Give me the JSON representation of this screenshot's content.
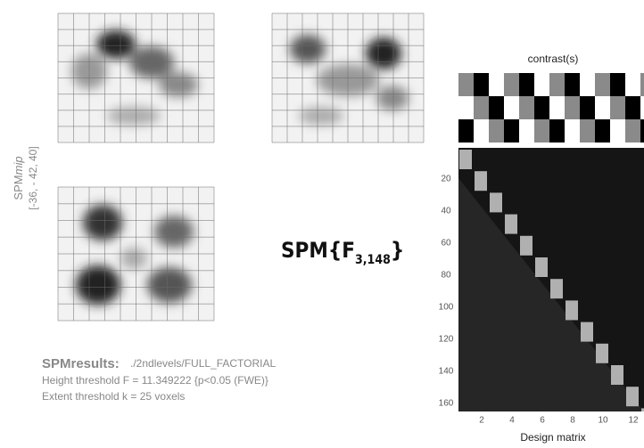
{
  "mip": {
    "label": "SPM",
    "label_italic": "mip",
    "coordinates": "[-36, - 42, 40]"
  },
  "statistic": {
    "label": "SPM{F",
    "subscript": "3,148",
    "close": "}"
  },
  "results": {
    "label": "SPMresults:",
    "path": "./2ndlevels/FULL_FACTORIAL",
    "height_threshold": "Height threshold F = 11.349222 {p<0.05 (FWE)}",
    "extent_threshold": "Extent threshold k = 25 voxels"
  },
  "design_matrix": {
    "contrast_title": "contrast(s)",
    "xlabel": "Design matrix",
    "yticks": [
      20,
      40,
      60,
      80,
      100,
      120,
      140,
      160
    ],
    "xticks": [
      2,
      4,
      6,
      8,
      10,
      12
    ]
  }
}
